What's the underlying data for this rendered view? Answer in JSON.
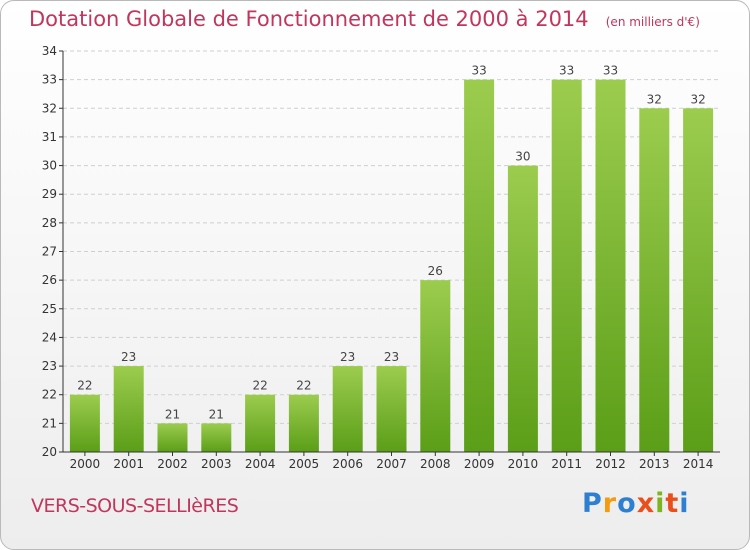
{
  "header": {
    "title": "Dotation Globale de Fonctionnement de 2000 à 2014",
    "unit": "(en milliers d'€)"
  },
  "commune": "VERS-SOUS-SELLIèRES",
  "logo": {
    "text": "Proxiti",
    "letters": [
      "P",
      "r",
      "o",
      "x",
      "i",
      "t",
      "i"
    ],
    "colors": [
      "#2f7fd0",
      "#f39c12",
      "#2f7fd0",
      "#e94e1b",
      "#7cb51f",
      "#e94e1b",
      "#2f7fd0"
    ]
  },
  "colors": {
    "bar_top": "#9ccc4e",
    "bar_bottom": "#5b9e18",
    "title": "#c0365c",
    "axis": "#333333"
  },
  "chart_data": {
    "type": "bar",
    "title": "Dotation Globale de Fonctionnement de 2000 à 2014",
    "subtitle": "(en milliers d'€)",
    "categories": [
      "2000",
      "2001",
      "2002",
      "2003",
      "2004",
      "2005",
      "2006",
      "2007",
      "2008",
      "2009",
      "2010",
      "2011",
      "2012",
      "2013",
      "2014"
    ],
    "values": [
      22,
      23,
      21,
      21,
      22,
      22,
      23,
      23,
      26,
      33,
      30,
      33,
      33,
      32,
      32
    ],
    "yticks": [
      "20",
      "21",
      "22",
      "23",
      "24",
      "25",
      "26",
      "27",
      "28",
      "29",
      "30",
      "31",
      "32",
      "33",
      "34"
    ],
    "ylim": [
      20,
      34
    ],
    "grid": true,
    "legend": "none"
  }
}
